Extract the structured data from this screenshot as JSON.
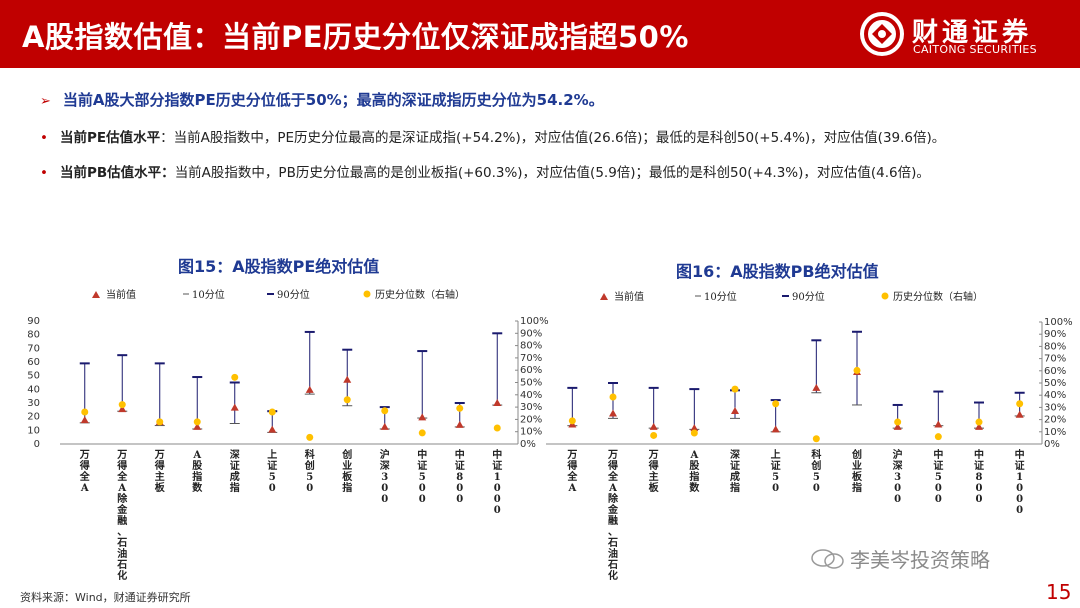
{
  "header": {
    "title": "A股指数估值：当前PE历史分位仅深证成指超50%",
    "logo_cn": "财通证券",
    "logo_en": "CAITONG SECURITIES"
  },
  "lead": "当前A股大部分指数PE历史分位低于50%；最高的深证成指历史分位为54.2%。",
  "bullets": [
    {
      "key": "当前PE估值水平",
      "text": "：当前A股指数中，PE历史分位最高的是深证成指(+54.2%)，对应估值(26.6倍)；最低的是科创50(+5.4%)，对应估值(39.6倍)。"
    },
    {
      "key": "当前PB估值水平：",
      "text": "当前A股指数中，PB历史分位最高的是创业板指(+60.3%)，对应估值(5.9倍)；最低的是科创50(+4.3%)，对应估值(4.6倍)。"
    }
  ],
  "legend": {
    "current": "当前值",
    "p10": "10分位",
    "p90": "90分位",
    "pct": "历史分位数（右轴）"
  },
  "footer": {
    "source": "资料来源：Wind，财通证券研究所",
    "watermark": "李美岑投资策略",
    "page": "15"
  },
  "colors": {
    "brand": "#c00000",
    "title_blue": "#1f3a93",
    "marker_red": "#c0392b",
    "marker_yellow": "#ffc000",
    "range_line": "#1a1a6e"
  },
  "chart_data": [
    {
      "type": "scatter",
      "title": "图15：A股指数PE绝对估值",
      "categories": [
        "万得全A",
        "万得全A(除金融、石油石化)",
        "万得主板",
        "A股指数",
        "深证成指",
        "上证50",
        "科创50",
        "创业板指",
        "沪深300",
        "中证500",
        "中证800",
        "中证1000"
      ],
      "category_labels": [
        "万得全A",
        "万得全A除金融、石油石化",
        "万得主板",
        "A股指数",
        "深证成指",
        "上证50",
        "科创50",
        "创业板指",
        "沪深300",
        "中证500",
        "中证800",
        "中证1000"
      ],
      "series": [
        {
          "name": "当前值",
          "axis": "left",
          "values": [
            17.5,
            25.5,
            16.0,
            12.5,
            26.6,
            10.5,
            39.6,
            47.0,
            12.5,
            19.5,
            14.0,
            30.0
          ]
        },
        {
          "name": "10分位",
          "axis": "left",
          "values": [
            15.5,
            24.0,
            13.5,
            11.0,
            15.0,
            8.5,
            36.5,
            28.0,
            11.0,
            19.0,
            12.5,
            28.5
          ]
        },
        {
          "name": "90分位",
          "axis": "left",
          "values": [
            59.0,
            65.0,
            59.0,
            49.0,
            45.0,
            24.0,
            82.0,
            69.0,
            27.0,
            68.0,
            30.0,
            81.0
          ]
        },
        {
          "name": "历史分位数（右轴）",
          "axis": "right",
          "values": [
            0.26,
            0.32,
            0.18,
            0.18,
            0.542,
            0.26,
            0.054,
            0.36,
            0.27,
            0.09,
            0.29,
            0.13
          ]
        }
      ],
      "ylim": [
        0,
        90
      ],
      "yticks": [
        0,
        10,
        20,
        30,
        40,
        50,
        60,
        70,
        80,
        90
      ],
      "y2lim": [
        0,
        1
      ],
      "y2ticks": [
        "0%",
        "10%",
        "20%",
        "30%",
        "40%",
        "50%",
        "60%",
        "70%",
        "80%",
        "90%",
        "100%"
      ],
      "legend_position": "top"
    },
    {
      "type": "scatter",
      "title": "图16：A股指数PB绝对估值",
      "categories": [
        "万得全A",
        "万得全A(除金融、石油石化)",
        "万得主板",
        "A股指数",
        "深证成指",
        "上证50",
        "科创50",
        "创业板指",
        "沪深300",
        "中证500",
        "中证800",
        "中证1000"
      ],
      "category_labels": [
        "万得全A",
        "万得全A除金融、石油石化",
        "万得主板",
        "A股指数",
        "深证成指",
        "上证50",
        "科创50",
        "创业板指",
        "沪深300",
        "中证500",
        "中证800",
        "中证1000"
      ],
      "series": [
        {
          "name": "当前值",
          "axis": "left",
          "values": [
            1.6,
            2.5,
            1.4,
            1.3,
            2.7,
            1.2,
            4.6,
            5.9,
            1.4,
            1.6,
            1.4,
            2.4
          ]
        },
        {
          "name": "10分位",
          "axis": "left",
          "values": [
            1.5,
            2.1,
            1.3,
            1.2,
            2.1,
            1.0,
            4.2,
            3.2,
            1.3,
            1.5,
            1.3,
            2.3
          ]
        },
        {
          "name": "90分位",
          "axis": "left",
          "values": [
            4.6,
            5.0,
            4.6,
            4.5,
            4.4,
            3.6,
            8.5,
            9.2,
            3.2,
            4.3,
            3.4,
            4.2
          ]
        },
        {
          "name": "历史分位数（右轴）",
          "axis": "right",
          "values": [
            0.19,
            0.385,
            0.07,
            0.09,
            0.45,
            0.33,
            0.043,
            0.603,
            0.18,
            0.06,
            0.18,
            0.33
          ]
        }
      ],
      "ylim": [
        0,
        10
      ],
      "y2lim": [
        0,
        1
      ],
      "y2ticks": [
        "0%",
        "10%",
        "20%",
        "30%",
        "40%",
        "50%",
        "60%",
        "70%",
        "80%",
        "90%",
        "100%"
      ],
      "legend_position": "top"
    }
  ]
}
